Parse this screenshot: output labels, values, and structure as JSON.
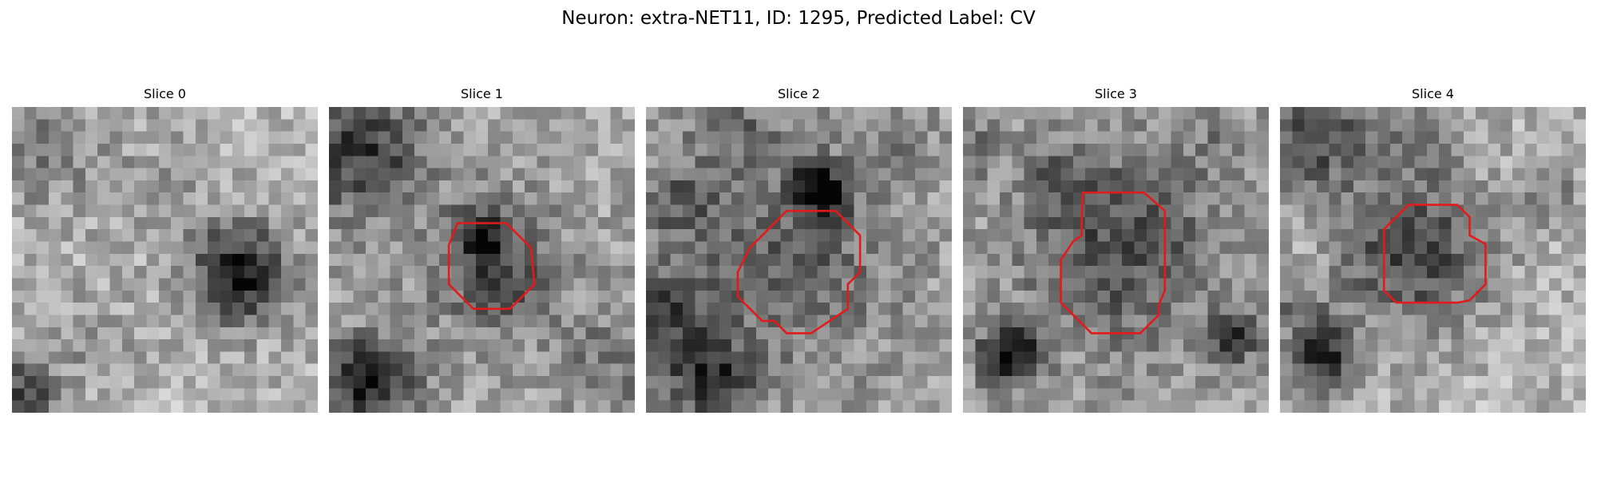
{
  "figure": {
    "suptitle": "Neuron: extra-NET11, ID: 1295, Predicted Label: CV"
  },
  "image_style": {
    "colormap": "grayscale",
    "contour_color": "#e31a1c"
  },
  "slices": [
    {
      "title": "Slice 0",
      "has_contour": false
    },
    {
      "title": "Slice 1",
      "has_contour": true
    },
    {
      "title": "Slice 2",
      "has_contour": true
    },
    {
      "title": "Slice 3",
      "has_contour": true
    },
    {
      "title": "Slice 4",
      "has_contour": true
    }
  ]
}
